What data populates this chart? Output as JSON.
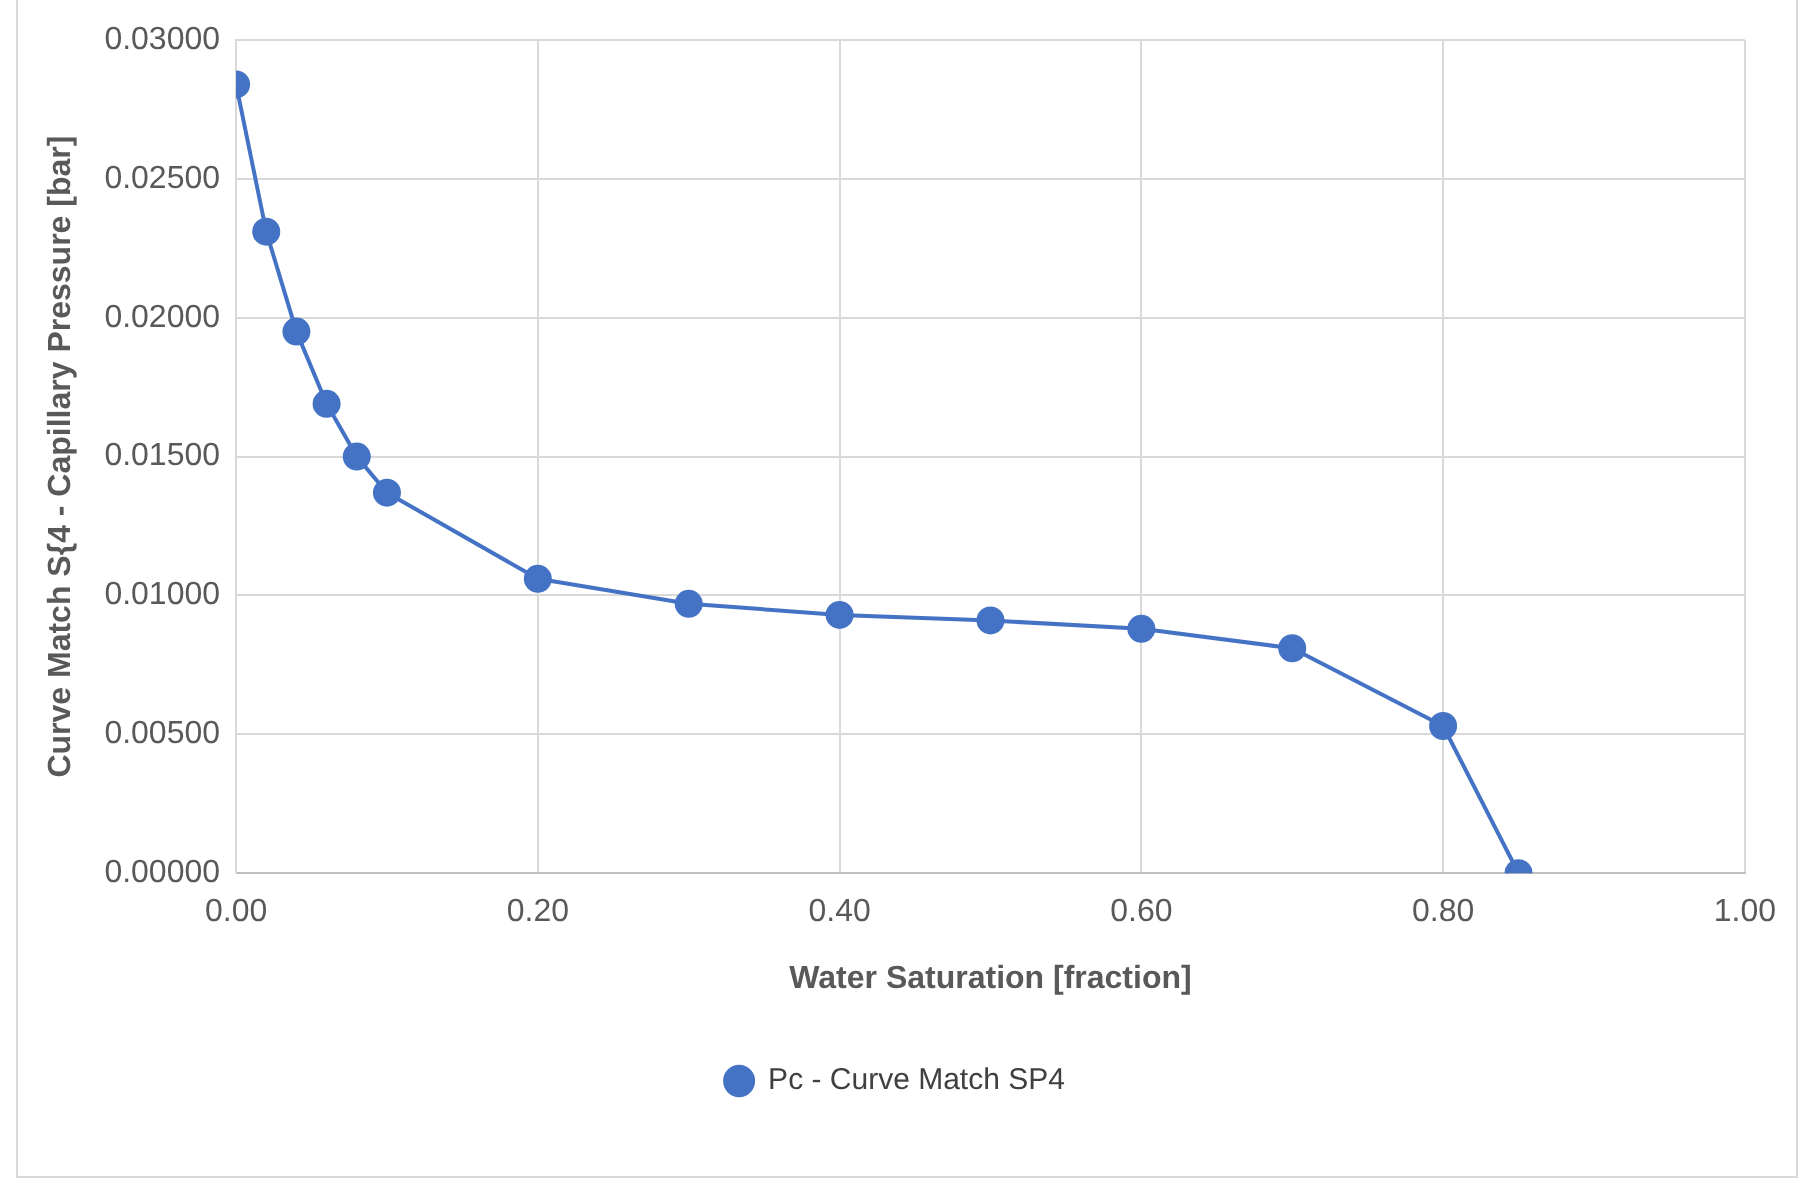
{
  "chart_data": {
    "type": "line",
    "xlabel": "Water Saturation [fraction]",
    "ylabel": "Curve Match S{4 - Capillary Pressure [bar]",
    "x": [
      0,
      0.02,
      0.04,
      0.06,
      0.08,
      0.1,
      0.2,
      0.3,
      0.4,
      0.5,
      0.6,
      0.7,
      0.8,
      0.85
    ],
    "series": [
      {
        "name": "Pc - Curve Match SP4",
        "color": "#4472c4",
        "values": [
          0.0284,
          0.0231,
          0.0195,
          0.0169,
          0.015,
          0.0137,
          0.0106,
          0.0097,
          0.0093,
          0.0091,
          0.0088,
          0.0081,
          0.0053,
          0
        ]
      }
    ],
    "xlim": [
      0,
      1
    ],
    "xticks": [
      {
        "value": 0,
        "label": "0.00"
      },
      {
        "value": 0.2,
        "label": "0.20"
      },
      {
        "value": 0.4,
        "label": "0.40"
      },
      {
        "value": 0.6,
        "label": "0.60"
      },
      {
        "value": 0.8,
        "label": "0.80"
      },
      {
        "value": 1,
        "label": "1.00"
      }
    ],
    "ylim": [
      0,
      0.03
    ],
    "yticks": [
      {
        "value": 0,
        "label": "0.00000"
      },
      {
        "value": 0.005,
        "label": "0.00500"
      },
      {
        "value": 0.01,
        "label": "0.01000"
      },
      {
        "value": 0.015,
        "label": "0.01500"
      },
      {
        "value": 0.02,
        "label": "0.02000"
      },
      {
        "value": 0.025,
        "label": "0.02500"
      },
      {
        "value": 0.03,
        "label": "0.03000"
      }
    ],
    "grid": true,
    "legend": "bottom",
    "marker": "circle",
    "line_style": "solid"
  }
}
